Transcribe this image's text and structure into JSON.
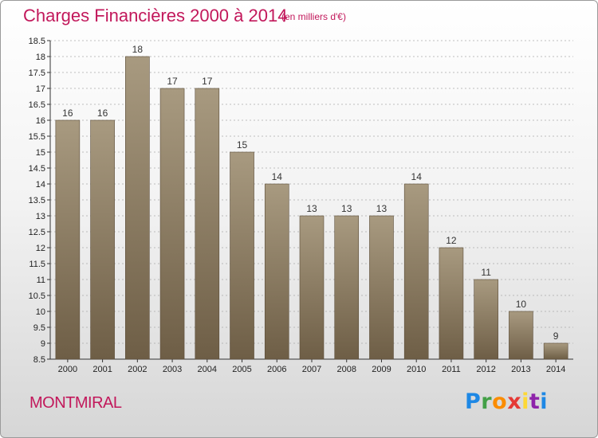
{
  "title": "Charges Financières 2000 à 2014",
  "subtitle": "(en milliers d'€)",
  "commune": "MONTMIRAL",
  "logo": {
    "letters": [
      "P",
      "r",
      "o",
      "x",
      "i",
      "t",
      "i"
    ],
    "colors": [
      "#1e88e5",
      "#43a047",
      "#fb8c00",
      "#e53935",
      "#fdd835",
      "#8e24aa",
      "#1e88e5"
    ]
  },
  "colors": {
    "bar_top": "#a89a80",
    "bar_bottom": "#6e5e46",
    "bar_edge": "#5a4c38",
    "gridline": "#aaaaaa",
    "accent": "#c2185b"
  },
  "chart_data": {
    "type": "bar",
    "categories": [
      "2000",
      "2001",
      "2002",
      "2003",
      "2004",
      "2005",
      "2006",
      "2007",
      "2008",
      "2009",
      "2010",
      "2011",
      "2012",
      "2013",
      "2014"
    ],
    "values": [
      16,
      16,
      18,
      17,
      17,
      15,
      14,
      13,
      13,
      13,
      14,
      12,
      11,
      10,
      9
    ],
    "data_labels": [
      "16",
      "16",
      "18",
      "17",
      "17",
      "15",
      "14",
      "13",
      "13",
      "13",
      "14",
      "12",
      "11",
      "10",
      "9"
    ],
    "ylim": [
      8.5,
      18.5
    ],
    "yticks": [
      "8.5",
      "9",
      "9.5",
      "10",
      "10.5",
      "11",
      "11.5",
      "12",
      "12.5",
      "13",
      "13.5",
      "14",
      "14.5",
      "15",
      "15.5",
      "16",
      "16.5",
      "17",
      "17.5",
      "18",
      "18.5"
    ],
    "ytick_values": [
      8.5,
      9,
      9.5,
      10,
      10.5,
      11,
      11.5,
      12,
      12.5,
      13,
      13.5,
      14,
      14.5,
      15,
      15.5,
      16,
      16.5,
      17,
      17.5,
      18,
      18.5
    ],
    "grid": true
  }
}
